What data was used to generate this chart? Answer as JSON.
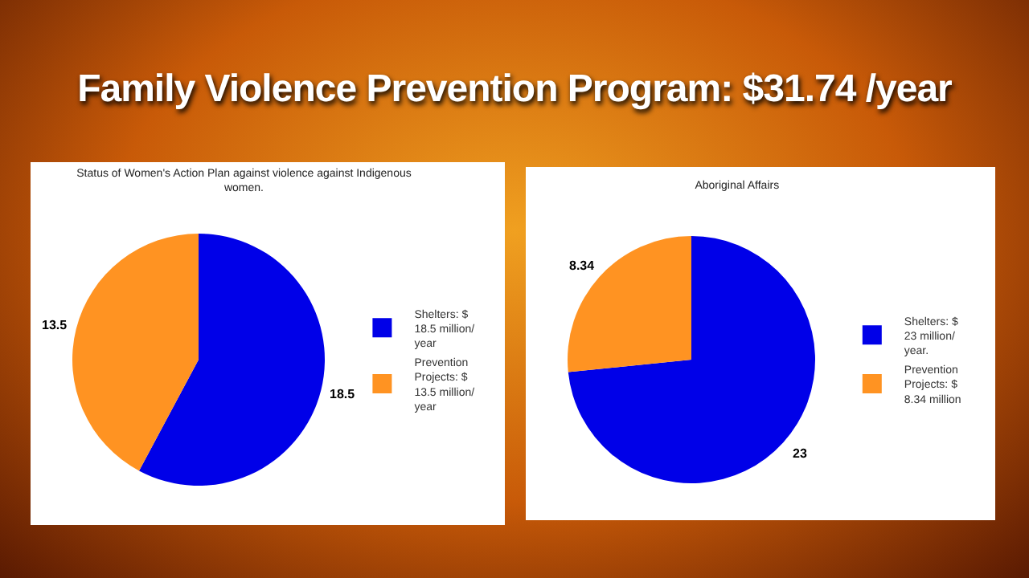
{
  "chart_data": [
    {
      "type": "other",
      "title": "Family Violence Prevention Program: $31.74 /year"
    },
    {
      "type": "pie",
      "title": "Status of Women's Action Plan against violence against Indigenous women.",
      "categories": [
        "Shelters: $ 18.5 million/ year",
        "Prevention Projects: $ 13.5 million/ year"
      ],
      "values": [
        18.5,
        13.5
      ],
      "colors": [
        "#0000e8",
        "#ff9322"
      ],
      "data_labels": true,
      "legend": "right"
    },
    {
      "type": "pie",
      "title": "Aboriginal Affairs",
      "categories": [
        "Shelters: $ 23 million/ year.",
        "Prevention Projects: $ 8.34 million"
      ],
      "values": [
        23,
        8.34
      ],
      "colors": [
        "#0000e8",
        "#ff9322"
      ],
      "data_labels": true,
      "legend": "right"
    }
  ]
}
